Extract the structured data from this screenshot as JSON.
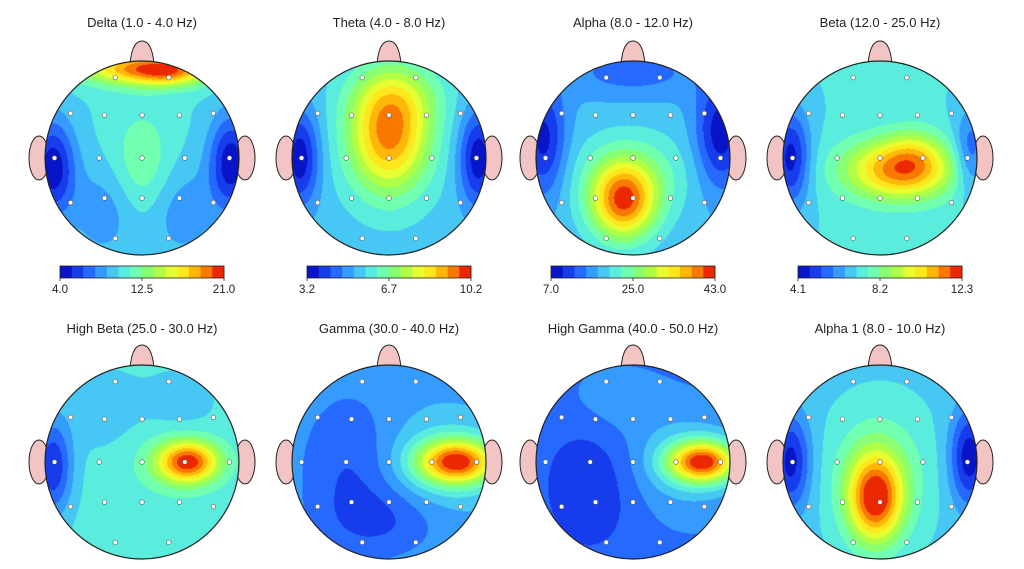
{
  "chart_data": {
    "type": "heatmap",
    "colors": {
      "scale": [
        "#0000b4",
        "#1e50ff",
        "#3cb4ff",
        "#64ffd2",
        "#96ff50",
        "#ffff28",
        "#ffa000",
        "#e60000"
      ],
      "ear": "#f2c4c4",
      "outline": "#222222"
    },
    "maps": [
      {
        "title": "Delta (1.0 - 4.0 Hz)",
        "colorbar": {
          "min": "4.0",
          "mid": "12.5",
          "max": "21.0"
        },
        "base": 0.36,
        "blobs": [
          {
            "x": 0.05,
            "y": -0.92,
            "sx": 0.45,
            "sy": 0.12,
            "a": 0.55
          },
          {
            "x": 0.32,
            "y": -0.88,
            "sx": 0.22,
            "sy": 0.1,
            "a": 0.15
          },
          {
            "x": 0.0,
            "y": 0.08,
            "sx": 0.22,
            "sy": 0.4,
            "a": 0.14
          },
          {
            "x": -0.92,
            "y": 0.1,
            "sx": 0.16,
            "sy": 0.35,
            "a": -0.34
          },
          {
            "x": 0.92,
            "y": 0.05,
            "sx": 0.16,
            "sy": 0.35,
            "a": -0.34
          },
          {
            "x": -0.38,
            "y": 0.55,
            "sx": 0.25,
            "sy": 0.35,
            "a": -0.12
          },
          {
            "x": 0.4,
            "y": 0.55,
            "sx": 0.25,
            "sy": 0.35,
            "a": -0.12
          }
        ]
      },
      {
        "title": "Theta (4.0 - 8.0 Hz)",
        "colorbar": {
          "min": "3.2",
          "mid": "6.7",
          "max": "10.2"
        },
        "base": 0.32,
        "blobs": [
          {
            "x": 0.0,
            "y": -0.22,
            "sx": 0.3,
            "sy": 0.42,
            "a": 0.55
          },
          {
            "x": 0.1,
            "y": -0.65,
            "sx": 0.35,
            "sy": 0.25,
            "a": 0.15
          },
          {
            "x": -0.92,
            "y": 0.0,
            "sx": 0.14,
            "sy": 0.35,
            "a": -0.3
          },
          {
            "x": 0.92,
            "y": 0.0,
            "sx": 0.14,
            "sy": 0.35,
            "a": -0.3
          }
        ]
      },
      {
        "title": "Alpha (8.0 - 12.0 Hz)",
        "colorbar": {
          "min": "7.0",
          "mid": "25.0",
          "max": "43.0"
        },
        "base": 0.3,
        "blobs": [
          {
            "x": -0.1,
            "y": 0.45,
            "sx": 0.24,
            "sy": 0.28,
            "a": 0.58
          },
          {
            "x": 0.0,
            "y": 0.15,
            "sx": 0.45,
            "sy": 0.32,
            "a": 0.15
          },
          {
            "x": -0.92,
            "y": -0.18,
            "sx": 0.16,
            "sy": 0.4,
            "a": -0.26
          },
          {
            "x": 0.9,
            "y": -0.25,
            "sx": 0.18,
            "sy": 0.4,
            "a": -0.28
          },
          {
            "x": 0.0,
            "y": -0.88,
            "sx": 0.5,
            "sy": 0.18,
            "a": -0.12
          }
        ]
      },
      {
        "title": "Beta (12.0 - 25.0 Hz)",
        "colorbar": {
          "min": "4.1",
          "mid": "8.2",
          "max": "12.3"
        },
        "base": 0.36,
        "blobs": [
          {
            "x": 0.2,
            "y": 0.12,
            "sx": 0.4,
            "sy": 0.22,
            "a": 0.52
          },
          {
            "x": 0.35,
            "y": -0.05,
            "sx": 0.2,
            "sy": 0.2,
            "a": 0.12
          },
          {
            "x": -0.92,
            "y": 0.0,
            "sx": 0.14,
            "sy": 0.35,
            "a": -0.32
          },
          {
            "x": 0.93,
            "y": -0.05,
            "sx": 0.12,
            "sy": 0.3,
            "a": -0.22
          }
        ]
      },
      {
        "title": "High Beta (25.0 - 30.0 Hz)",
        "colorbar": null,
        "base": 0.38,
        "blobs": [
          {
            "x": 0.48,
            "y": 0.0,
            "sx": 0.22,
            "sy": 0.15,
            "a": 0.55
          },
          {
            "x": 0.3,
            "y": 0.0,
            "sx": 0.3,
            "sy": 0.25,
            "a": 0.08
          },
          {
            "x": -0.92,
            "y": 0.05,
            "sx": 0.14,
            "sy": 0.35,
            "a": -0.3
          },
          {
            "x": -0.4,
            "y": -0.55,
            "sx": 0.3,
            "sy": 0.3,
            "a": -0.06
          },
          {
            "x": 0.4,
            "y": -0.6,
            "sx": 0.25,
            "sy": 0.25,
            "a": -0.06
          }
        ]
      },
      {
        "title": "Gamma (30.0 - 40.0 Hz)",
        "colorbar": null,
        "base": 0.26,
        "blobs": [
          {
            "x": 0.7,
            "y": 0.0,
            "sx": 0.28,
            "sy": 0.16,
            "a": 0.64
          },
          {
            "x": 0.55,
            "y": 0.0,
            "sx": 0.42,
            "sy": 0.35,
            "a": 0.12
          },
          {
            "x": -0.4,
            "y": 0.1,
            "sx": 0.35,
            "sy": 0.55,
            "a": -0.12
          },
          {
            "x": 0.0,
            "y": 0.6,
            "sx": 0.4,
            "sy": 0.25,
            "a": -0.1
          }
        ]
      },
      {
        "title": "High Gamma (40.0 - 50.0 Hz)",
        "colorbar": null,
        "base": 0.2,
        "blobs": [
          {
            "x": 0.72,
            "y": 0.0,
            "sx": 0.25,
            "sy": 0.15,
            "a": 0.68
          },
          {
            "x": 0.55,
            "y": 0.0,
            "sx": 0.42,
            "sy": 0.35,
            "a": 0.14
          },
          {
            "x": -0.45,
            "y": 0.25,
            "sx": 0.35,
            "sy": 0.5,
            "a": -0.12
          },
          {
            "x": -0.2,
            "y": -0.6,
            "sx": 0.35,
            "sy": 0.25,
            "a": 0.06
          }
        ]
      },
      {
        "title": "Alpha 1 (8.0 - 10.0 Hz)",
        "colorbar": null,
        "base": 0.34,
        "blobs": [
          {
            "x": -0.05,
            "y": 0.38,
            "sx": 0.2,
            "sy": 0.32,
            "a": 0.58
          },
          {
            "x": 0.0,
            "y": 0.1,
            "sx": 0.35,
            "sy": 0.45,
            "a": 0.15
          },
          {
            "x": -0.92,
            "y": 0.0,
            "sx": 0.14,
            "sy": 0.35,
            "a": -0.3
          },
          {
            "x": 0.92,
            "y": -0.05,
            "sx": 0.14,
            "sy": 0.35,
            "a": -0.32
          }
        ]
      }
    ]
  }
}
